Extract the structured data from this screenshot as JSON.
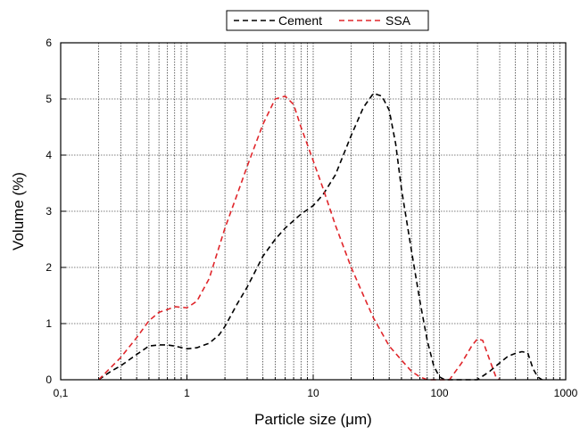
{
  "chart_data": {
    "type": "line",
    "x_scale": "log",
    "xlim": [
      0.1,
      1000
    ],
    "ylim": [
      0,
      6
    ],
    "xlabel": "Particle size (μm)",
    "ylabel": "Volume (%)",
    "x_ticks": [
      0.1,
      1,
      10,
      100,
      1000
    ],
    "x_tick_labels": [
      "0,1",
      "1",
      "10",
      "100",
      "1000"
    ],
    "y_ticks": [
      0,
      1,
      2,
      3,
      4,
      5,
      6
    ],
    "y_tick_labels": [
      "0",
      "1",
      "2",
      "3",
      "4",
      "5",
      "6"
    ],
    "grid": true,
    "legend_position": "top-center",
    "series": [
      {
        "name": "Cement",
        "color": "#000000",
        "style": "dashed",
        "points": [
          [
            0.2,
            0.0
          ],
          [
            0.25,
            0.15
          ],
          [
            0.3,
            0.25
          ],
          [
            0.4,
            0.45
          ],
          [
            0.5,
            0.6
          ],
          [
            0.6,
            0.62
          ],
          [
            0.7,
            0.62
          ],
          [
            0.8,
            0.6
          ],
          [
            1.0,
            0.55
          ],
          [
            1.2,
            0.57
          ],
          [
            1.5,
            0.65
          ],
          [
            1.8,
            0.8
          ],
          [
            2.0,
            0.95
          ],
          [
            2.5,
            1.35
          ],
          [
            3.0,
            1.65
          ],
          [
            4.0,
            2.2
          ],
          [
            5.0,
            2.5
          ],
          [
            6.0,
            2.7
          ],
          [
            8.0,
            2.95
          ],
          [
            10.0,
            3.1
          ],
          [
            12.0,
            3.3
          ],
          [
            15.0,
            3.65
          ],
          [
            20.0,
            4.35
          ],
          [
            25.0,
            4.85
          ],
          [
            30.0,
            5.1
          ],
          [
            35.0,
            5.05
          ],
          [
            40.0,
            4.8
          ],
          [
            45.0,
            4.2
          ],
          [
            50.0,
            3.4
          ],
          [
            60.0,
            2.3
          ],
          [
            70.0,
            1.4
          ],
          [
            80.0,
            0.7
          ],
          [
            90.0,
            0.25
          ],
          [
            100.0,
            0.05
          ],
          [
            110.0,
            0.0
          ],
          [
            200.0,
            0.0
          ],
          [
            250.0,
            0.15
          ],
          [
            300.0,
            0.3
          ],
          [
            350.0,
            0.42
          ],
          [
            400.0,
            0.47
          ],
          [
            450.0,
            0.5
          ],
          [
            500.0,
            0.48
          ],
          [
            550.0,
            0.2
          ],
          [
            600.0,
            0.05
          ],
          [
            650.0,
            0.0
          ]
        ]
      },
      {
        "name": "SSA",
        "color": "#e0262b",
        "style": "dashed",
        "points": [
          [
            0.2,
            0.0
          ],
          [
            0.3,
            0.4
          ],
          [
            0.4,
            0.75
          ],
          [
            0.5,
            1.05
          ],
          [
            0.6,
            1.2
          ],
          [
            0.7,
            1.25
          ],
          [
            0.8,
            1.3
          ],
          [
            1.0,
            1.28
          ],
          [
            1.2,
            1.4
          ],
          [
            1.5,
            1.8
          ],
          [
            2.0,
            2.7
          ],
          [
            2.5,
            3.3
          ],
          [
            3.0,
            3.8
          ],
          [
            4.0,
            4.55
          ],
          [
            5.0,
            5.0
          ],
          [
            6.0,
            5.05
          ],
          [
            7.0,
            4.9
          ],
          [
            8.0,
            4.5
          ],
          [
            10.0,
            3.9
          ],
          [
            12.0,
            3.4
          ],
          [
            15.0,
            2.75
          ],
          [
            20.0,
            2.0
          ],
          [
            25.0,
            1.5
          ],
          [
            30.0,
            1.1
          ],
          [
            40.0,
            0.6
          ],
          [
            50.0,
            0.35
          ],
          [
            60.0,
            0.15
          ],
          [
            70.0,
            0.05
          ],
          [
            80.0,
            0.0
          ],
          [
            120.0,
            0.0
          ],
          [
            150.0,
            0.3
          ],
          [
            180.0,
            0.6
          ],
          [
            200.0,
            0.73
          ],
          [
            220.0,
            0.7
          ],
          [
            250.0,
            0.35
          ],
          [
            280.0,
            0.05
          ],
          [
            300.0,
            0.0
          ]
        ]
      }
    ]
  }
}
